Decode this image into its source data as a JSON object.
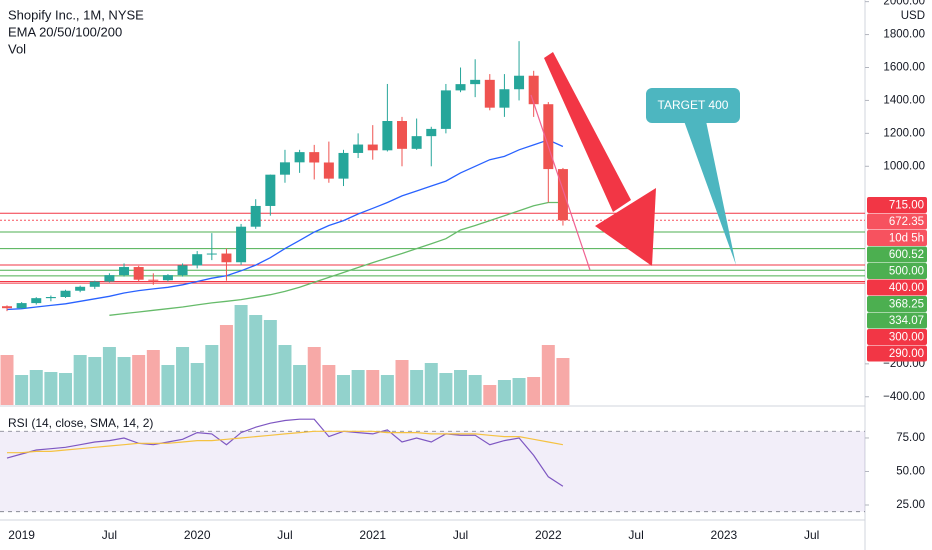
{
  "chart_data": [
    {
      "type": "candlestick",
      "title": "Shopify Inc., 1M, NYSE",
      "subtitle": "EMA 20/50/100/200",
      "currency": "USD",
      "x": [
        "2018-12",
        "2019-01",
        "2019-02",
        "2019-03",
        "2019-04",
        "2019-05",
        "2019-06",
        "2019-07",
        "2019-08",
        "2019-09",
        "2019-10",
        "2019-11",
        "2019-12",
        "2020-01",
        "2020-02",
        "2020-03",
        "2020-04",
        "2020-05",
        "2020-06",
        "2020-07",
        "2020-08",
        "2020-09",
        "2020-10",
        "2020-11",
        "2020-12",
        "2021-01",
        "2021-02",
        "2021-03",
        "2021-04",
        "2021-05",
        "2021-06",
        "2021-07",
        "2021-08",
        "2021-09",
        "2021-10",
        "2021-11",
        "2021-12",
        "2022-01",
        "2022-02"
      ],
      "open": [
        150,
        138,
        169,
        199,
        206,
        244,
        268,
        300,
        339,
        388,
        311,
        308,
        339,
        398,
        466,
        470,
        417,
        633,
        759,
        949,
        1024,
        1086,
        1023,
        925,
        1081,
        1132,
        1097,
        1275,
        1106,
        1183,
        1227,
        1461,
        1499,
        1525,
        1356,
        1468,
        1550,
        1377,
        983
      ],
      "high": [
        155,
        175,
        205,
        215,
        250,
        275,
        305,
        350,
        410,
        395,
        350,
        345,
        410,
        485,
        594,
        500,
        650,
        800,
        950,
        1100,
        1100,
        1130,
        1150,
        1100,
        1200,
        1250,
        1500,
        1300,
        1290,
        1240,
        1500,
        1600,
        1650,
        1560,
        1560,
        1760,
        1580,
        1390,
        990
      ],
      "low": [
        120,
        135,
        160,
        180,
        200,
        235,
        255,
        295,
        330,
        300,
        280,
        300,
        330,
        380,
        430,
        305,
        400,
        620,
        700,
        900,
        960,
        920,
        900,
        880,
        1050,
        1040,
        1090,
        1000,
        1100,
        1000,
        1200,
        1450,
        1420,
        1340,
        1300,
        1400,
        1300,
        780,
        640
      ],
      "close": [
        138,
        169,
        199,
        206,
        244,
        268,
        300,
        339,
        388,
        311,
        308,
        339,
        398,
        466,
        470,
        417,
        633,
        759,
        949,
        1024,
        1086,
        1023,
        925,
        1081,
        1132,
        1097,
        1275,
        1106,
        1183,
        1227,
        1461,
        1499,
        1525,
        1356,
        1468,
        1550,
        1377,
        983,
        672.35
      ],
      "up_color": "#26a69a",
      "down_color": "#ef5350",
      "lines": [
        {
          "color": "#2962ff",
          "values": [
            130,
            135,
            145,
            155,
            165,
            180,
            195,
            210,
            230,
            245,
            255,
            265,
            280,
            300,
            320,
            335,
            365,
            400,
            445,
            500,
            550,
            600,
            640,
            670,
            710,
            745,
            780,
            820,
            850,
            880,
            910,
            960,
            1000,
            1040,
            1060,
            1100,
            1130,
            1160,
            1120
          ]
        },
        {
          "color": "#66bb6a",
          "values": [
            null,
            null,
            null,
            null,
            null,
            null,
            null,
            95,
            105,
            115,
            125,
            135,
            145,
            158,
            170,
            180,
            190,
            205,
            220,
            240,
            265,
            295,
            325,
            355,
            385,
            415,
            443,
            470,
            500,
            530,
            560,
            613,
            640,
            670,
            700,
            730,
            760,
            780,
            780
          ]
        }
      ],
      "ylim": [
        -450,
        2010
      ],
      "yticks": [
        {
          "value": 2000,
          "label": "2000.00"
        },
        {
          "value": 1800,
          "label": "1800.00"
        },
        {
          "value": 1600,
          "label": "1600.00"
        },
        {
          "value": 1400,
          "label": "1400.00"
        },
        {
          "value": 1200,
          "label": "1200.00"
        },
        {
          "value": 1000,
          "label": "1000.00"
        },
        {
          "value": -200,
          "label": "−200.00"
        },
        {
          "value": -400,
          "label": "−400.00"
        }
      ],
      "price_labels": [
        {
          "value": 715,
          "label": "715.00",
          "color": "#f23645",
          "line": "solid"
        },
        {
          "value": 672.35,
          "label": "672.35",
          "color": "#f7525f",
          "line": "dotted"
        },
        {
          "value": 600.52,
          "label": "600.52",
          "color": "#4caf50",
          "line": "solid"
        },
        {
          "value": 500,
          "label": "500.00",
          "color": "#4caf50",
          "line": "solid"
        },
        {
          "value": 400,
          "label": "400.00",
          "color": "#f23645",
          "line": "solid"
        },
        {
          "value": 368.25,
          "label": "368.25",
          "color": "#4caf50",
          "line": "solid"
        },
        {
          "value": 334.07,
          "label": "334.07",
          "color": "#4caf50",
          "line": "solid"
        },
        {
          "value": 300,
          "label": "300.00",
          "color": "#f23645",
          "line": "solid"
        },
        {
          "value": 290,
          "label": "290.00",
          "color": "#f23645",
          "line": "solid"
        }
      ],
      "countdown": "10d 5h",
      "annotation": "TARGET 400",
      "xticks": [
        {
          "value": "2019-01",
          "label": "2019"
        },
        {
          "value": "2019-07",
          "label": "Jul"
        },
        {
          "value": "2020-01",
          "label": "2020"
        },
        {
          "value": "2020-07",
          "label": "Jul"
        },
        {
          "value": "2021-01",
          "label": "2021"
        },
        {
          "value": "2021-07",
          "label": "Jul"
        },
        {
          "value": "2022-01",
          "label": "2022"
        },
        {
          "value": "2022-07",
          "label": "Jul"
        },
        {
          "value": "2023-01",
          "label": "2023"
        },
        {
          "value": "2023-07",
          "label": "Jul"
        }
      ]
    },
    {
      "type": "bar",
      "title": "Vol",
      "values": [
        50,
        30,
        35,
        33,
        32,
        50,
        48,
        58,
        48,
        50,
        55,
        40,
        58,
        42,
        60,
        80,
        100,
        90,
        85,
        60,
        40,
        58,
        40,
        30,
        35,
        35,
        30,
        45,
        35,
        42,
        32,
        35,
        30,
        20,
        25,
        27,
        28,
        60,
        47
      ],
      "ylim": [
        0,
        405
      ]
    },
    {
      "type": "line",
      "title": "RSI (14, close, SMA, 14, 2)",
      "series": [
        {
          "color": "#7e57c2",
          "values": [
            60,
            63,
            66,
            67,
            68,
            70,
            72,
            73,
            75,
            71,
            70,
            72,
            74,
            79,
            78,
            70,
            79,
            83,
            86,
            88,
            89,
            89,
            76,
            80,
            79,
            78,
            81,
            72,
            75,
            72,
            78,
            77,
            77,
            70,
            73,
            75,
            62,
            46,
            39
          ]
        },
        {
          "color": "#f5c242",
          "values": [
            64,
            64,
            65,
            65,
            66,
            67,
            68,
            69,
            70,
            71,
            71,
            71,
            72,
            73,
            73,
            74,
            75,
            76,
            77,
            78,
            79,
            80,
            80,
            80,
            80,
            80,
            79,
            79,
            79,
            78,
            78,
            78,
            78,
            77,
            76,
            76,
            74,
            72,
            70
          ]
        }
      ],
      "band": [
        20,
        80
      ],
      "ylim": [
        13.8,
        98.1
      ],
      "yticks": [
        {
          "value": 75,
          "label": "75.00"
        },
        {
          "value": 50,
          "label": "50.00"
        },
        {
          "value": 25,
          "label": "25.00"
        }
      ]
    }
  ]
}
